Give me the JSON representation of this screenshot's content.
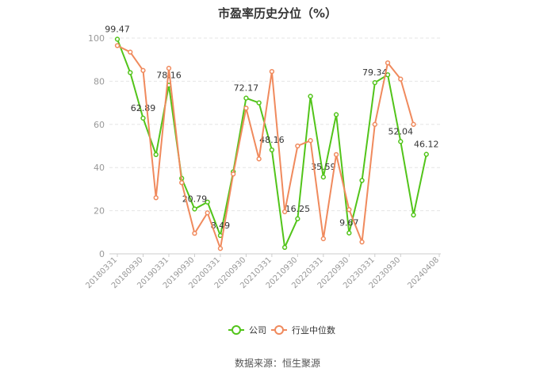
{
  "chart_data": {
    "type": "line",
    "title": "市盈率历史分位（%）",
    "source": "数据来源：恒生聚源",
    "ylim": [
      0,
      100
    ],
    "yticks": [
      0,
      20,
      40,
      60,
      80,
      100
    ],
    "grid": "horizontal dashed",
    "legend_position": "bottom",
    "x": [
      "20180331",
      "20180630",
      "20180930",
      "20181231",
      "20190331",
      "20190630",
      "20190930",
      "20191231",
      "20200331",
      "20200630",
      "20200930",
      "20201231",
      "20210331",
      "20210630",
      "20210930",
      "20211231",
      "20220331",
      "20220630",
      "20220930",
      "20221231",
      "20230331",
      "20230630",
      "20230930",
      "20231231",
      "20240331",
      "20240408"
    ],
    "xtick_labels": [
      "20180331",
      "20180930",
      "20190331",
      "20190930",
      "20200331",
      "20200930",
      "20210331",
      "20210930",
      "20220331",
      "20220930",
      "20230331",
      "20230930",
      "20240408"
    ],
    "xtick_indices": [
      0,
      2,
      4,
      6,
      8,
      10,
      12,
      14,
      16,
      18,
      20,
      22,
      25
    ],
    "series": [
      {
        "name": "公司",
        "color": "#52c41a",
        "values": [
          99.47,
          84,
          62.89,
          46,
          78.16,
          35,
          20.79,
          24,
          8.49,
          38,
          72.17,
          70,
          48.16,
          3,
          16.25,
          73,
          35.59,
          64.5,
          9.67,
          34,
          79.34,
          83,
          52.04,
          18,
          46.12,
          null
        ],
        "labels": {
          "0": "99.47",
          "2": "62.89",
          "4": "78.16",
          "6": "20.79",
          "8": "8.49",
          "10": "72.17",
          "12": "48.16",
          "14": "16.25",
          "16": "35.59",
          "18": "9.67",
          "20": "79.34",
          "22": "52.04",
          "24": "46.12"
        }
      },
      {
        "name": "行业中位数",
        "color": "#f08a5d",
        "values": [
          96.5,
          93.5,
          85,
          26,
          86,
          33,
          9.5,
          19,
          2.5,
          37,
          67.5,
          44,
          84.5,
          19.5,
          50,
          52.5,
          7,
          46,
          20.5,
          5.5,
          60,
          88.5,
          81,
          60,
          null,
          null
        ]
      }
    ]
  }
}
